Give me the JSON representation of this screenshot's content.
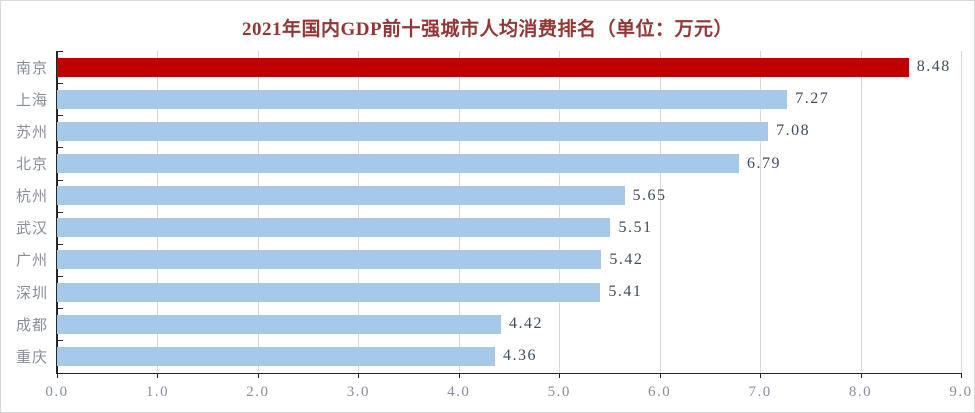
{
  "chart_data": {
    "type": "bar",
    "orientation": "horizontal",
    "title": "2021年国内GDP前十强城市人均消费排名（单位：万元）",
    "categories": [
      "南京",
      "上海",
      "苏州",
      "北京",
      "杭州",
      "武汉",
      "广州",
      "深圳",
      "成都",
      "重庆"
    ],
    "values": [
      8.48,
      7.27,
      7.08,
      6.79,
      5.65,
      5.51,
      5.42,
      5.41,
      4.42,
      4.36
    ],
    "value_labels": [
      "8.48",
      "7.27",
      "7.08",
      "6.79",
      "5.65",
      "5.51",
      "5.42",
      "5.41",
      "4.42",
      "4.36"
    ],
    "highlight_index": 0,
    "xlabel": "",
    "ylabel": "",
    "xlim": [
      0,
      9
    ],
    "x_ticks": [
      "0.0",
      "1.0",
      "2.0",
      "3.0",
      "4.0",
      "5.0",
      "6.0",
      "7.0",
      "8.0",
      "9.0"
    ],
    "grid": "vertical-major",
    "legend": "none",
    "colors": {
      "highlight_bar": "#c00000",
      "default_bar": "#a6c9ea",
      "title": "#943634",
      "value_label": "#3f4c61",
      "axis_label": "#878e9d",
      "gridline": "#d9d9d9",
      "axis_line": "#262626",
      "chart_border": "#d9d9d9",
      "background": "#ffffff"
    }
  }
}
